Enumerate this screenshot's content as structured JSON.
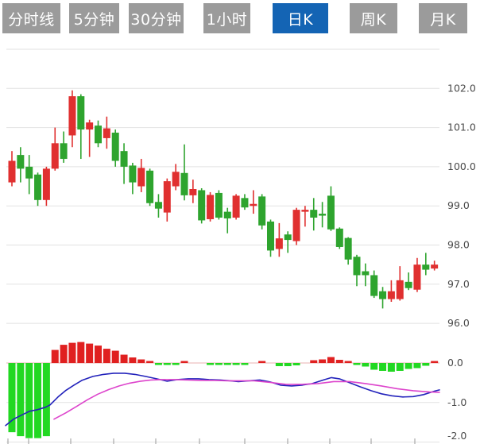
{
  "tabs": {
    "items": [
      {
        "label": "分时线",
        "active": false
      },
      {
        "label": "5分钟",
        "active": false
      },
      {
        "label": "30分钟",
        "active": false
      },
      {
        "label": "1小时",
        "active": false
      },
      {
        "label": "日K",
        "active": true
      },
      {
        "label": "周K",
        "active": false
      },
      {
        "label": "月K",
        "active": false
      }
    ],
    "active_color": "#1464b4",
    "inactive_color": "#9b9b9b",
    "text_color": "#ffffff"
  },
  "colors": {
    "candle_up": "#e03030",
    "candle_down": "#2ea42e",
    "macd_bar_up": "#e02020",
    "macd_bar_down": "#22d822",
    "dif_line": "#2222bb",
    "dea_line": "#dd44cc",
    "gridline": "#e2e2e2",
    "zero_line": "#eab2b2",
    "axis_label": "#4a4a4a",
    "tick": "#999999"
  },
  "chart_data": {
    "type": "candlestick",
    "title": "",
    "timeframe_selected": "日K",
    "legend_position": "none",
    "grid": true,
    "price_panel": {
      "ylim": [
        95.9,
        103.1
      ],
      "gridlines": [
        {
          "price": 103,
          "label": ""
        },
        {
          "price": 102,
          "label": "102.0"
        },
        {
          "price": 101,
          "label": "101.0"
        },
        {
          "price": 100,
          "label": "100.0"
        },
        {
          "price": 99,
          "label": "99.0"
        },
        {
          "price": 98,
          "label": "98.0"
        },
        {
          "price": 97,
          "label": "97.0"
        },
        {
          "price": 96,
          "label": "96.0"
        }
      ],
      "candles_ohlc": [
        [
          99.6,
          100.4,
          99.5,
          100.15
        ],
        [
          100.3,
          100.5,
          99.6,
          99.95
        ],
        [
          100.0,
          100.3,
          99.3,
          99.7
        ],
        [
          99.8,
          99.85,
          99.0,
          99.15
        ],
        [
          99.15,
          100.0,
          99.0,
          99.95
        ],
        [
          99.95,
          101.0,
          99.9,
          100.6
        ],
        [
          100.6,
          100.9,
          100.1,
          100.2
        ],
        [
          100.8,
          101.95,
          100.5,
          101.8
        ],
        [
          101.8,
          101.85,
          100.2,
          100.95
        ],
        [
          100.95,
          101.2,
          100.25,
          101.13
        ],
        [
          101.05,
          101.18,
          100.5,
          100.6
        ],
        [
          100.73,
          101.28,
          100.46,
          100.98
        ],
        [
          100.87,
          100.95,
          100.0,
          100.15
        ],
        [
          100.4,
          100.6,
          99.56,
          100.0
        ],
        [
          100.03,
          100.1,
          99.3,
          99.6
        ],
        [
          99.5,
          100.2,
          99.35,
          99.97
        ],
        [
          99.9,
          99.95,
          99.0,
          99.07
        ],
        [
          99.1,
          99.3,
          98.7,
          98.93
        ],
        [
          98.83,
          99.7,
          98.6,
          99.63
        ],
        [
          99.5,
          100.07,
          99.4,
          99.87
        ],
        [
          99.84,
          100.57,
          99.14,
          99.27
        ],
        [
          99.27,
          99.67,
          99.07,
          99.43
        ],
        [
          99.4,
          99.45,
          98.55,
          98.63
        ],
        [
          98.66,
          99.35,
          98.6,
          99.28
        ],
        [
          99.33,
          99.4,
          98.65,
          98.7
        ],
        [
          98.85,
          98.95,
          98.3,
          98.68
        ],
        [
          98.7,
          99.3,
          98.65,
          99.26
        ],
        [
          99.2,
          99.3,
          98.9,
          98.96
        ],
        [
          99.0,
          99.4,
          98.8,
          99.05
        ],
        [
          99.24,
          99.3,
          98.4,
          98.5
        ],
        [
          98.6,
          98.65,
          97.7,
          97.86
        ],
        [
          97.9,
          98.56,
          97.7,
          98.17
        ],
        [
          98.27,
          98.35,
          97.8,
          98.13
        ],
        [
          98.1,
          98.95,
          98.0,
          98.9
        ],
        [
          98.85,
          99.0,
          98.47,
          98.9
        ],
        [
          98.9,
          99.2,
          98.37,
          98.7
        ],
        [
          98.8,
          99.1,
          98.45,
          98.75
        ],
        [
          99.26,
          99.5,
          98.36,
          98.4
        ],
        [
          98.42,
          98.45,
          97.9,
          97.95
        ],
        [
          98.18,
          98.2,
          97.5,
          97.63
        ],
        [
          97.7,
          97.75,
          96.95,
          97.23
        ],
        [
          97.33,
          97.53,
          96.95,
          97.23
        ],
        [
          97.23,
          97.35,
          96.65,
          96.7
        ],
        [
          96.82,
          96.93,
          96.38,
          96.62
        ],
        [
          96.62,
          97.1,
          96.55,
          96.82
        ],
        [
          96.62,
          97.46,
          96.58,
          97.1
        ],
        [
          97.06,
          97.3,
          96.85,
          96.9
        ],
        [
          96.86,
          97.67,
          96.8,
          97.5
        ],
        [
          97.5,
          97.8,
          97.23,
          97.37
        ],
        [
          97.4,
          97.6,
          97.35,
          97.5
        ]
      ]
    },
    "macd_panel": {
      "ylim": [
        -2.1,
        0.6
      ],
      "gridlines": [
        {
          "value": 0,
          "label": "0.0"
        },
        {
          "value": -1,
          "label": "-1.0"
        },
        {
          "value": -2,
          "label": "-2.0"
        }
      ],
      "histogram": [
        -1.75,
        -1.85,
        -1.9,
        -1.9,
        -1.85,
        0.33,
        0.46,
        0.51,
        0.53,
        0.49,
        0.44,
        0.36,
        0.31,
        0.21,
        0.14,
        0.09,
        0.04,
        -0.02,
        -0.03,
        -0.03,
        0.02,
        0,
        0,
        -0.03,
        -0.04,
        -0.04,
        -0.05,
        -0.04,
        0,
        0.03,
        0,
        -0.08,
        -0.08,
        -0.06,
        0,
        0.07,
        0.09,
        0.15,
        0.08,
        0.03,
        -0.05,
        -0.09,
        -0.17,
        -0.2,
        -0.22,
        -0.2,
        -0.15,
        -0.13,
        -0.07,
        0.05
      ],
      "dif_line_points": [
        [
          7,
          -1.58
        ],
        [
          17,
          -1.42
        ],
        [
          27,
          -1.32
        ],
        [
          37,
          -1.22
        ],
        [
          47,
          -1.18
        ],
        [
          57,
          -1.12
        ],
        [
          63,
          -1.06
        ],
        [
          73,
          -0.86
        ],
        [
          83,
          -0.69
        ],
        [
          93,
          -0.56
        ],
        [
          103,
          -0.44
        ],
        [
          117,
          -0.34
        ],
        [
          130,
          -0.29
        ],
        [
          143,
          -0.26
        ],
        [
          157,
          -0.26
        ],
        [
          170,
          -0.29
        ],
        [
          183,
          -0.34
        ],
        [
          197,
          -0.4
        ],
        [
          210,
          -0.46
        ],
        [
          223,
          -0.42
        ],
        [
          237,
          -0.4
        ],
        [
          250,
          -0.4
        ],
        [
          263,
          -0.42
        ],
        [
          277,
          -0.43
        ],
        [
          290,
          -0.45
        ],
        [
          300,
          -0.47
        ],
        [
          313,
          -0.45
        ],
        [
          327,
          -0.43
        ],
        [
          340,
          -0.48
        ],
        [
          353,
          -0.56
        ],
        [
          367,
          -0.58
        ],
        [
          380,
          -0.56
        ],
        [
          393,
          -0.52
        ],
        [
          407,
          -0.43
        ],
        [
          417,
          -0.37
        ],
        [
          427,
          -0.4
        ],
        [
          440,
          -0.5
        ],
        [
          453,
          -0.6
        ],
        [
          467,
          -0.7
        ],
        [
          480,
          -0.78
        ],
        [
          493,
          -0.83
        ],
        [
          507,
          -0.86
        ],
        [
          520,
          -0.85
        ],
        [
          533,
          -0.8
        ],
        [
          547,
          -0.71
        ],
        [
          553,
          -0.68
        ]
      ],
      "dea_line_points": [
        [
          68,
          -1.42
        ],
        [
          83,
          -1.26
        ],
        [
          97,
          -1.09
        ],
        [
          110,
          -0.93
        ],
        [
          123,
          -0.79
        ],
        [
          137,
          -0.67
        ],
        [
          150,
          -0.58
        ],
        [
          163,
          -0.51
        ],
        [
          177,
          -0.46
        ],
        [
          190,
          -0.43
        ],
        [
          203,
          -0.42
        ],
        [
          220,
          -0.42
        ],
        [
          237,
          -0.43
        ],
        [
          253,
          -0.44
        ],
        [
          270,
          -0.44
        ],
        [
          287,
          -0.45
        ],
        [
          300,
          -0.45
        ],
        [
          320,
          -0.45
        ],
        [
          340,
          -0.49
        ],
        [
          360,
          -0.54
        ],
        [
          380,
          -0.54
        ],
        [
          400,
          -0.52
        ],
        [
          420,
          -0.47
        ],
        [
          440,
          -0.47
        ],
        [
          460,
          -0.52
        ],
        [
          480,
          -0.58
        ],
        [
          500,
          -0.65
        ],
        [
          520,
          -0.7
        ],
        [
          540,
          -0.73
        ],
        [
          553,
          -0.74
        ]
      ]
    },
    "x_axis_tick_positions": [
      10,
      36,
      89,
      143,
      196,
      251,
      308,
      362,
      415,
      467,
      522
    ]
  }
}
